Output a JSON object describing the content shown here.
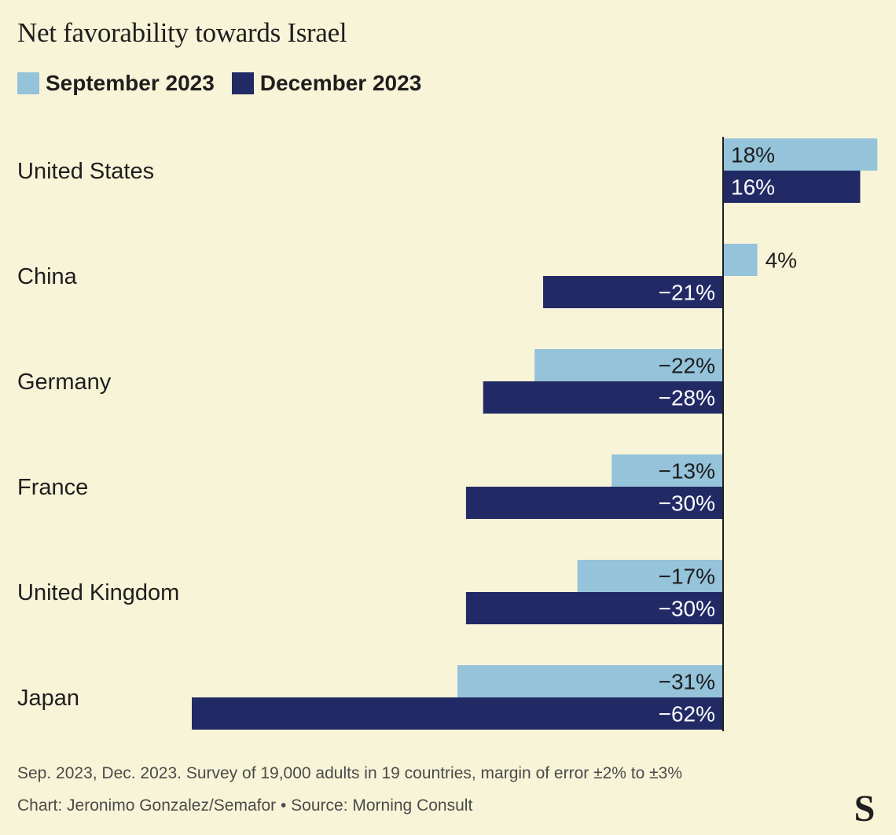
{
  "chart_data": {
    "type": "bar",
    "orientation": "horizontal",
    "title": "Net favorability towards Israel",
    "categories": [
      "United States",
      "China",
      "Germany",
      "France",
      "United Kingdom",
      "Japan"
    ],
    "series": [
      {
        "name": "September 2023",
        "color": "#94c3da",
        "values": [
          18,
          4,
          -22,
          -13,
          -17,
          -31
        ],
        "labels": [
          "18%",
          "4%",
          "−22%",
          "−13%",
          "−17%",
          "−31%"
        ]
      },
      {
        "name": "December 2023",
        "color": "#222a66",
        "values": [
          16,
          -21,
          -28,
          -30,
          -30,
          -62
        ],
        "labels": [
          "16%",
          "−21%",
          "−28%",
          "−30%",
          "−30%",
          "−62%"
        ]
      }
    ],
    "xlim": [
      -62,
      18
    ],
    "grid": false,
    "legend": "top-left",
    "note": "Sep. 2023, Dec. 2023. Survey of 19,000 adults in 19 countries, margin of error ±2% to ±3%",
    "credit": "Chart: Jeronimo Gonzalez/Semafor • Source: Morning Consult"
  },
  "brand": {
    "logo_letter": "S",
    "logo_icon": "semafor-logo-icon",
    "background": "#f8f4d8"
  }
}
